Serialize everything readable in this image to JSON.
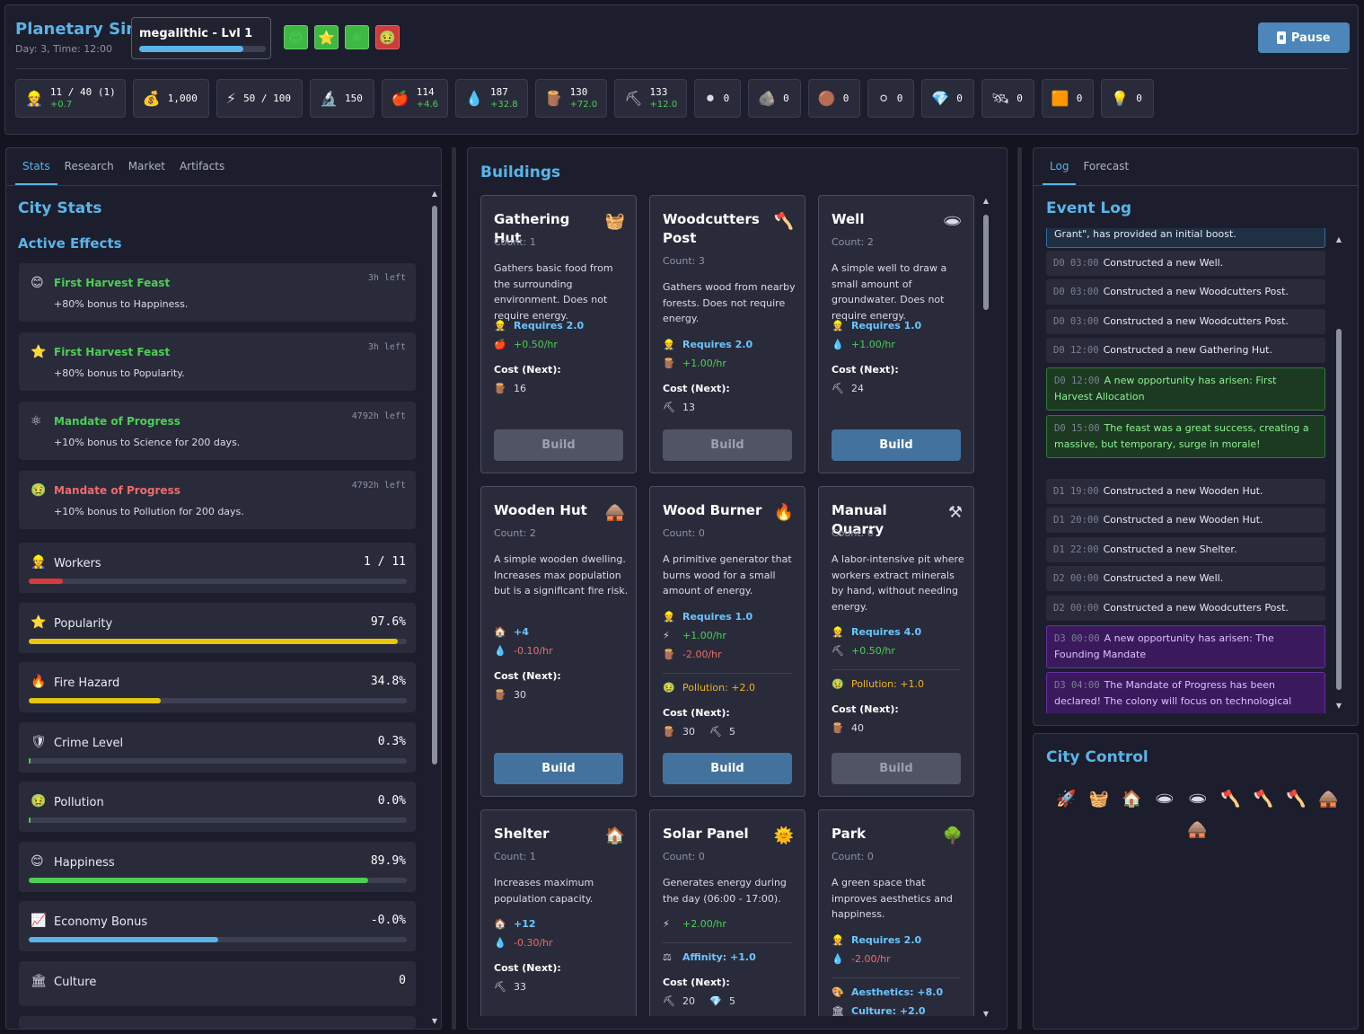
{
  "header": {
    "title": "Planetary Sim",
    "subtitle": "Day: 3, Time: 12:00",
    "era": {
      "name": "megalithic - Lvl 1",
      "progress": 0.82
    },
    "badges": [
      {
        "icon": "😊",
        "icon_name": "happiness-icon",
        "color": "green"
      },
      {
        "icon": "⭐",
        "icon_name": "star-icon",
        "color": "green"
      },
      {
        "icon": "⚛",
        "icon_name": "atom-icon",
        "color": "green"
      },
      {
        "icon": "🤢",
        "icon_name": "sick-face-icon",
        "color": "red"
      }
    ],
    "pause_label": "Pause",
    "pause_icon": "⏸"
  },
  "resources": [
    {
      "icon": "👷",
      "icon_name": "worker-icon",
      "value": "11 / 40 (1)",
      "rate": "+0.7"
    },
    {
      "icon": "💰",
      "icon_name": "money-bag-icon",
      "value": "1,000",
      "rate": ""
    },
    {
      "icon": "⚡",
      "icon_name": "lightning-icon",
      "value": "50 / 100",
      "rate": ""
    },
    {
      "icon": "🔬",
      "icon_name": "microscope-icon",
      "value": "150",
      "rate": ""
    },
    {
      "icon": "🍎",
      "icon_name": "apple-icon",
      "value": "114",
      "rate": "+4.6"
    },
    {
      "icon": "💧",
      "icon_name": "water-drop-icon",
      "value": "187",
      "rate": "+32.8"
    },
    {
      "icon": "🪵",
      "icon_name": "wood-icon",
      "value": "130",
      "rate": "+72.0"
    },
    {
      "icon": "⛏",
      "icon_name": "pickaxe-icon",
      "value": "133",
      "rate": "+12.0"
    },
    {
      "icon": "⚫",
      "icon_name": "coal-icon",
      "value": "0",
      "rate": ""
    },
    {
      "icon": "🪨",
      "icon_name": "stone-icon",
      "value": "0",
      "rate": ""
    },
    {
      "icon": "🟤",
      "icon_name": "copper-icon",
      "value": "0",
      "rate": ""
    },
    {
      "icon": "⚪",
      "icon_name": "pearl-icon",
      "value": "0",
      "rate": ""
    },
    {
      "icon": "💎",
      "icon_name": "gem-icon",
      "value": "0",
      "rate": ""
    },
    {
      "icon": "🛰",
      "icon_name": "satellite-icon",
      "value": "0",
      "rate": ""
    },
    {
      "icon": "🟧",
      "icon_name": "brick-icon",
      "value": "0",
      "rate": ""
    },
    {
      "icon": "💡",
      "icon_name": "bulb-icon",
      "value": "0",
      "rate": ""
    }
  ],
  "left": {
    "tabs": [
      "Stats",
      "Research",
      "Market",
      "Artifacts"
    ],
    "title": "City Stats",
    "effects_title": "Active Effects",
    "effects": [
      {
        "icon": "😊",
        "icon_name": "happiness-icon",
        "name": "First Harvest Feast",
        "desc": "+80% bonus to Happiness.",
        "time": "3h left",
        "color": "#4ccf56"
      },
      {
        "icon": "⭐",
        "icon_name": "star-icon",
        "name": "First Harvest Feast",
        "desc": "+80% bonus to Popularity.",
        "time": "3h left",
        "color": "#4ccf56"
      },
      {
        "icon": "⚛",
        "icon_name": "atom-icon",
        "name": "Mandate of Progress",
        "desc": "+10% bonus to Science for 200 days.",
        "time": "4792h left",
        "color": "#4ccf56"
      },
      {
        "icon": "🤢",
        "icon_name": "sick-face-icon",
        "name": "Mandate of Progress",
        "desc": "+10% bonus to Pollution for 200 days.",
        "time": "4792h left",
        "color": "#ef6b6b"
      }
    ],
    "stats": [
      {
        "icon": "👷",
        "icon_name": "worker-icon",
        "name": "Workers",
        "value": "1 / 11",
        "fill": 0.09,
        "color": "#d63b3b"
      },
      {
        "icon": "⭐",
        "icon_name": "star-icon",
        "name": "Popularity",
        "value": "97.6%",
        "fill": 0.976,
        "color": "#e8c610"
      },
      {
        "icon": "🔥",
        "icon_name": "fire-icon",
        "name": "Fire Hazard",
        "value": "34.8%",
        "fill": 0.348,
        "color": "#e8c610"
      },
      {
        "icon": "🛡",
        "icon_name": "shield-icon",
        "name": "Crime Level",
        "value": "0.3%",
        "fill": 0.003,
        "color": "#4ccf56"
      },
      {
        "icon": "🤢",
        "icon_name": "sick-face-icon",
        "name": "Pollution",
        "value": "0.0%",
        "fill": 0.0,
        "color": "#4ccf56"
      },
      {
        "icon": "😊",
        "icon_name": "happiness-icon",
        "name": "Happiness",
        "value": "89.9%",
        "fill": 0.899,
        "color": "#4ccf56"
      },
      {
        "icon": "📈",
        "icon_name": "chart-icon",
        "name": "Economy Bonus",
        "value": "-0.0%",
        "fill": 0.5,
        "color": "#5ab4e8"
      },
      {
        "icon": "🏛",
        "icon_name": "museum-icon",
        "name": "Culture",
        "value": "0",
        "fill": null,
        "color": ""
      }
    ]
  },
  "middle": {
    "title": "Buildings",
    "cards": [
      {
        "name": "Gathering Hut",
        "icon": "🧺",
        "icon_name": "basket-icon",
        "count": "Count: 1",
        "desc": "Gathers basic food from the surrounding environment. Does not require energy.",
        "lines": [
          {
            "i": "👷",
            "t": "Requires 2.0",
            "c": "blue"
          },
          {
            "i": "🍎",
            "t": "+0.50/hr",
            "c": "green"
          }
        ],
        "extra": [],
        "cost_label": "Cost (Next):",
        "cost": [
          {
            "i": "🪵",
            "t": "16"
          }
        ],
        "button": "Build",
        "enabled": false
      },
      {
        "name": "Woodcutters Post",
        "icon": "🪓",
        "icon_name": "axe-icon",
        "count": "Count: 3",
        "desc": "Gathers wood from nearby forests. Does not require energy.",
        "lines": [
          {
            "i": "👷",
            "t": "Requires 2.0",
            "c": "blue"
          },
          {
            "i": "🪵",
            "t": "+1.00/hr",
            "c": "green"
          }
        ],
        "extra": [],
        "cost_label": "Cost (Next):",
        "cost": [
          {
            "i": "⛏",
            "t": "13"
          }
        ],
        "button": "Build",
        "enabled": false
      },
      {
        "name": "Well",
        "icon": "🕳",
        "icon_name": "hole-icon",
        "count": "Count: 2",
        "desc": "A simple well to draw a small amount of groundwater. Does not require energy.",
        "lines": [
          {
            "i": "👷",
            "t": "Requires 1.0",
            "c": "blue"
          },
          {
            "i": "💧",
            "t": "+1.00/hr",
            "c": "green"
          }
        ],
        "extra": [],
        "cost_label": "Cost (Next):",
        "cost": [
          {
            "i": "⛏",
            "t": "24"
          }
        ],
        "button": "Build",
        "enabled": true
      },
      {
        "name": "Wooden Hut",
        "icon": "🛖",
        "icon_name": "hut-icon",
        "count": "Count: 2",
        "desc": "A simple wooden dwelling. Increases max population but is a significant fire risk.",
        "lines": [
          {
            "i": "🏠",
            "t": "+4",
            "c": "blue"
          },
          {
            "i": "💧",
            "t": "-0.10/hr",
            "c": "red"
          }
        ],
        "extra": [],
        "cost_label": "Cost (Next):",
        "cost": [
          {
            "i": "🪵",
            "t": "30"
          }
        ],
        "button": "Build",
        "enabled": true
      },
      {
        "name": "Wood Burner",
        "icon": "🔥",
        "icon_name": "fire-icon",
        "count": "Count: 0",
        "desc": "A primitive generator that burns wood for a small amount of energy.",
        "lines": [
          {
            "i": "👷",
            "t": "Requires 1.0",
            "c": "blue"
          },
          {
            "i": "⚡",
            "t": "+1.00/hr",
            "c": "green"
          },
          {
            "i": "🪵",
            "t": "-2.00/hr",
            "c": "red"
          }
        ],
        "extra": [
          {
            "i": "🤢",
            "t": "Pollution: +2.0",
            "c": "orange"
          }
        ],
        "cost_label": "Cost (Next):",
        "cost": [
          {
            "i": "🪵",
            "t": "30"
          },
          {
            "i": "⛏",
            "t": "5"
          }
        ],
        "button": "Build",
        "enabled": true
      },
      {
        "name": "Manual Quarry",
        "icon": "⚒",
        "icon_name": "hammer-pick-icon",
        "count": "Count: 0",
        "desc": "A labor-intensive pit where workers extract minerals by hand, without needing energy.",
        "lines": [
          {
            "i": "👷",
            "t": "Requires 4.0",
            "c": "blue"
          },
          {
            "i": "⛏",
            "t": "+0.50/hr",
            "c": "green"
          }
        ],
        "extra": [
          {
            "i": "🤢",
            "t": "Pollution: +1.0",
            "c": "orange"
          }
        ],
        "cost_label": "Cost (Next):",
        "cost": [
          {
            "i": "🪵",
            "t": "40"
          }
        ],
        "button": "Build",
        "enabled": false
      },
      {
        "name": "Shelter",
        "icon": "🏠",
        "icon_name": "house-icon",
        "count": "Count: 1",
        "desc": "Increases maximum population capacity.",
        "lines": [
          {
            "i": "🏠",
            "t": "+12",
            "c": "blue"
          },
          {
            "i": "💧",
            "t": "-0.30/hr",
            "c": "red"
          }
        ],
        "extra": [],
        "cost_label": "Cost (Next):",
        "cost": [
          {
            "i": "⛏",
            "t": "33"
          }
        ],
        "button": "",
        "enabled": false
      },
      {
        "name": "Solar Panel",
        "icon": "🌞",
        "icon_name": "sun-icon",
        "count": "Count: 0",
        "desc": "Generates energy during the day (06:00 - 17:00).",
        "lines": [
          {
            "i": "⚡",
            "t": "+2.00/hr",
            "c": "green"
          }
        ],
        "extra": [
          {
            "i": "⚖",
            "t": "Affinity: +1.0",
            "c": "blue"
          }
        ],
        "cost_label": "Cost (Next):",
        "cost": [
          {
            "i": "⛏",
            "t": "20"
          },
          {
            "i": "💎",
            "t": "5"
          }
        ],
        "button": "",
        "enabled": false
      },
      {
        "name": "Park",
        "icon": "🌳",
        "icon_name": "tree-icon",
        "count": "Count: 0",
        "desc": "A green space that improves aesthetics and happiness.",
        "lines": [
          {
            "i": "👷",
            "t": "Requires 2.0",
            "c": "blue"
          },
          {
            "i": "💧",
            "t": "-2.00/hr",
            "c": "red"
          }
        ],
        "extra": [
          {
            "i": "🎨",
            "t": "Aesthetics: +8.0",
            "c": "blue"
          },
          {
            "i": "🏛",
            "t": "Culture: +2.0",
            "c": "blue"
          }
        ],
        "cost_label": "",
        "cost": [],
        "button": "",
        "enabled": false
      }
    ]
  },
  "log": {
    "tabs": [
      "Log",
      "Forecast"
    ],
    "title": "Event Log",
    "entries": [
      {
        "time": "",
        "text": "Grant\", has provided an initial boost.",
        "type": "partial"
      },
      {
        "time": "D0 03:00",
        "text": "Constructed a new Well.",
        "type": "normal"
      },
      {
        "time": "D0 03:00",
        "text": "Constructed a new Woodcutters Post.",
        "type": "normal"
      },
      {
        "time": "D0 03:00",
        "text": "Constructed a new Woodcutters Post.",
        "type": "normal"
      },
      {
        "time": "D0 12:00",
        "text": "Constructed a new Gathering Hut.",
        "type": "normal"
      },
      {
        "time": "D0 12:00",
        "text": "A new opportunity has arisen: First Harvest Allocation",
        "type": "green"
      },
      {
        "time": "D0 15:00",
        "text": "The feast was a great success, creating a massive, but temporary, surge in morale!",
        "type": "green"
      },
      {
        "time": "D1 19:00",
        "text": "Constructed a new Wooden Hut.",
        "type": "normal"
      },
      {
        "time": "D1 20:00",
        "text": "Constructed a new Wooden Hut.",
        "type": "normal"
      },
      {
        "time": "D1 22:00",
        "text": "Constructed a new Shelter.",
        "type": "normal"
      },
      {
        "time": "D2 00:00",
        "text": "Constructed a new Well.",
        "type": "normal"
      },
      {
        "time": "D2 00:00",
        "text": "Constructed a new Woodcutters Post.",
        "type": "normal"
      },
      {
        "time": "D3 00:00",
        "text": "A new opportunity has arisen: The Founding Mandate",
        "type": "purple"
      },
      {
        "time": "D3 04:00",
        "text": "The Mandate of Progress has been declared! The colony will focus on technological advancement.",
        "type": "purple"
      }
    ]
  },
  "control": {
    "title": "City Control",
    "icons": [
      {
        "i": "🚀",
        "n": "rocket-icon"
      },
      {
        "i": "🧺",
        "n": "basket-icon"
      },
      {
        "i": "🏠",
        "n": "house-icon"
      },
      {
        "i": "🕳",
        "n": "hole-icon"
      },
      {
        "i": "🕳",
        "n": "hole-icon"
      },
      {
        "i": "🪓",
        "n": "axe-icon"
      },
      {
        "i": "🪓",
        "n": "axe-icon"
      },
      {
        "i": "🪓",
        "n": "axe-icon"
      },
      {
        "i": "🛖",
        "n": "hut-icon"
      },
      {
        "i": "🛖",
        "n": "hut-icon"
      }
    ]
  }
}
